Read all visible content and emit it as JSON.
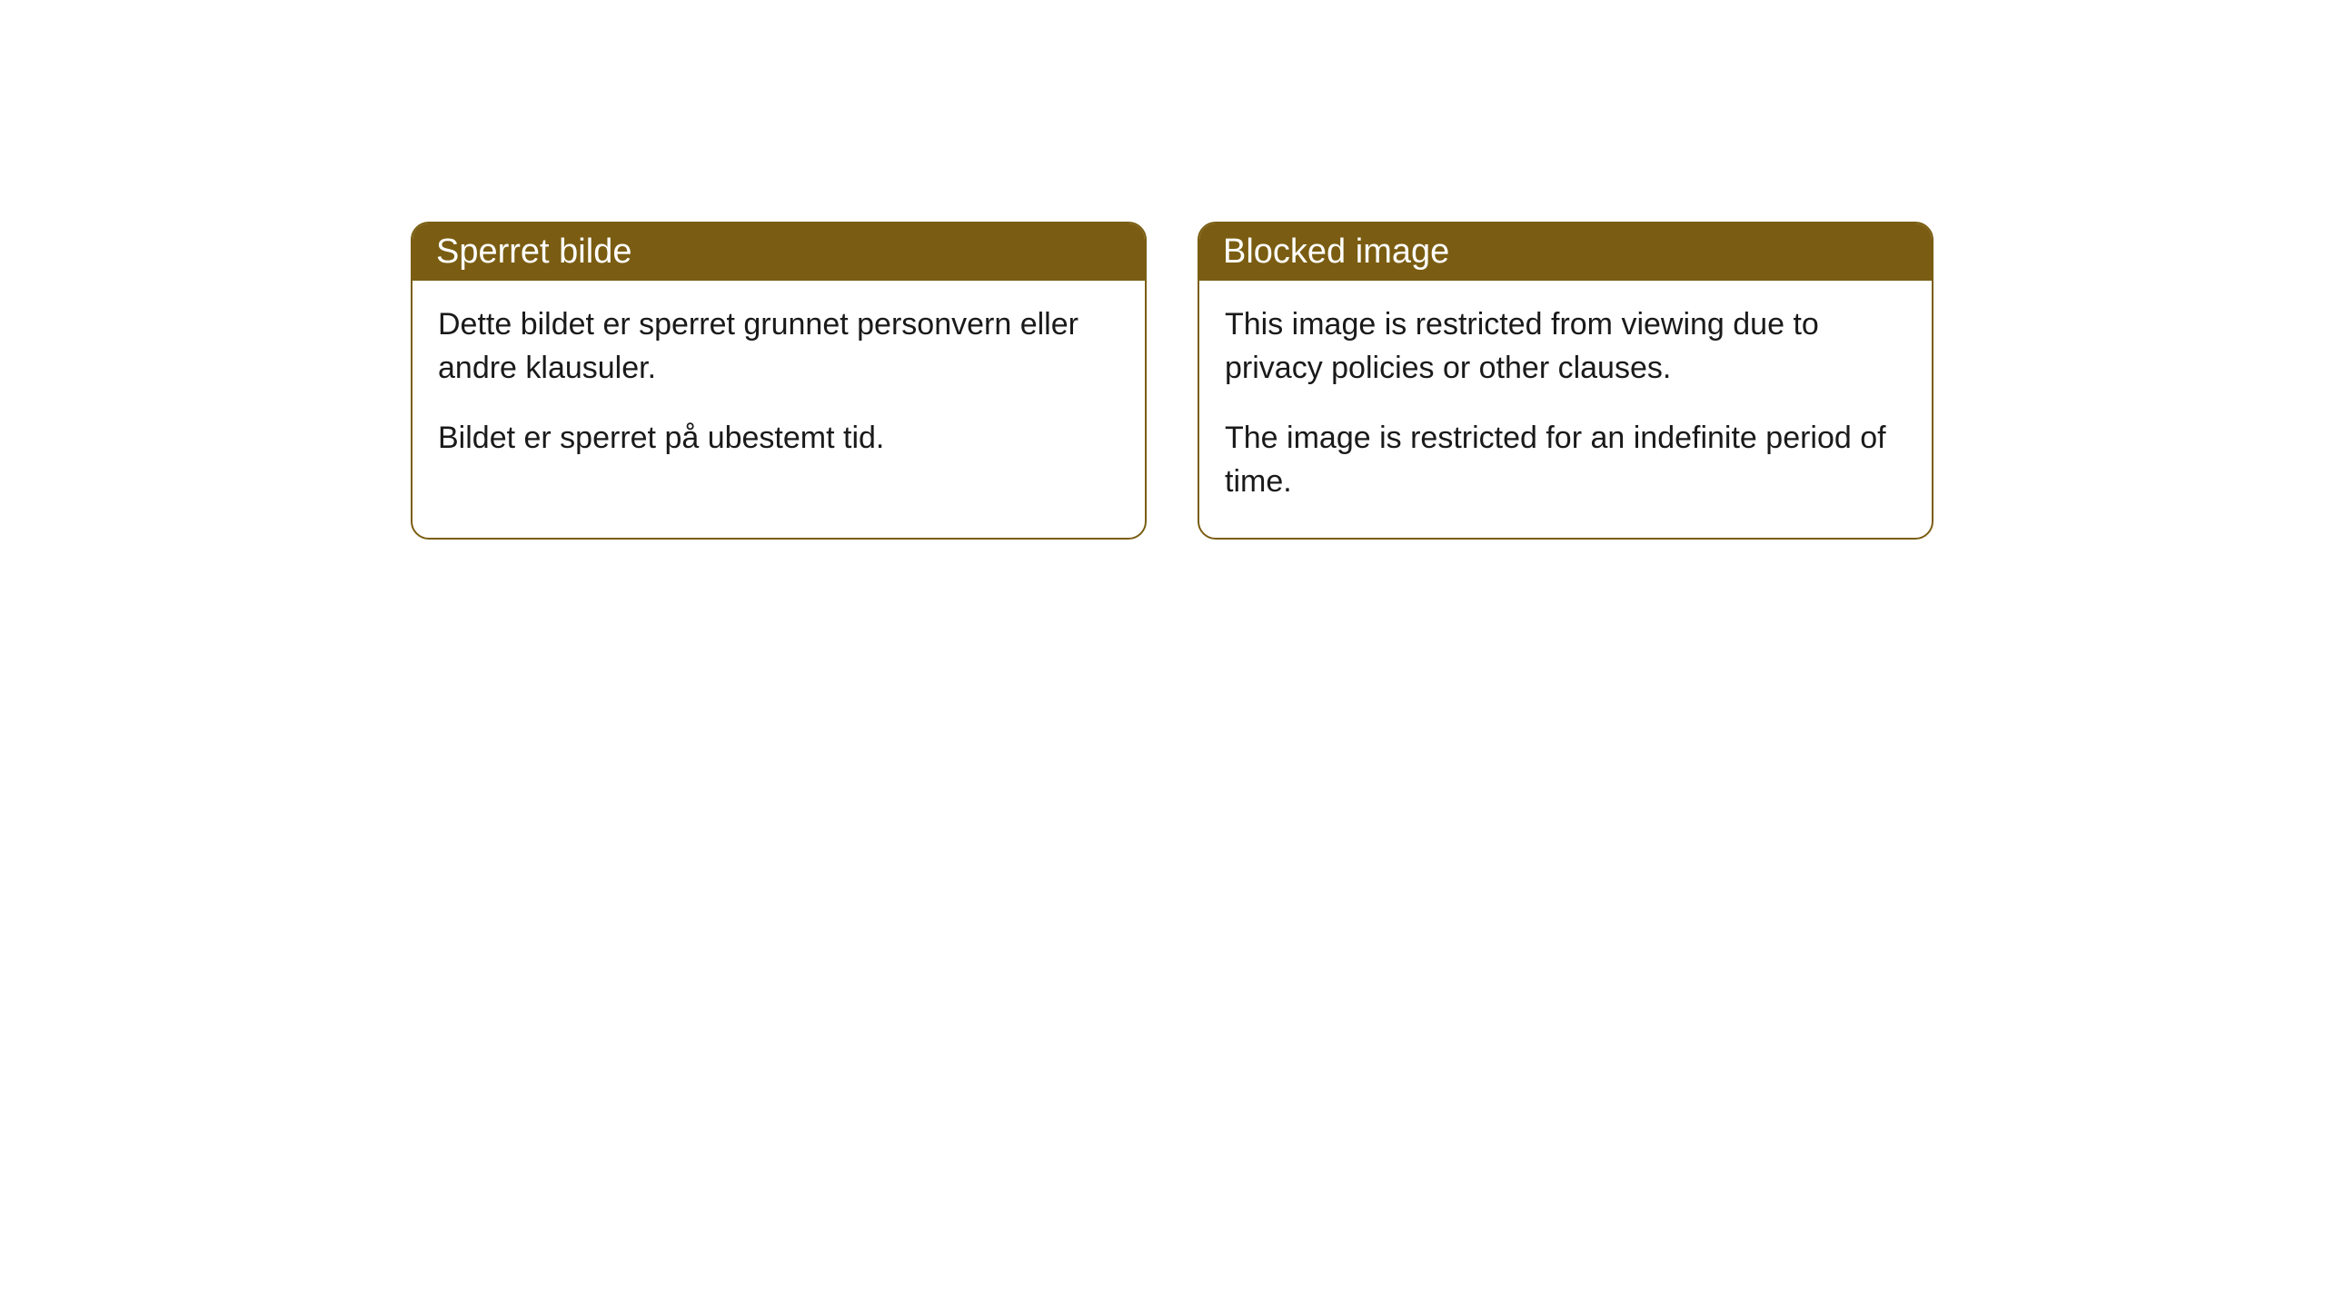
{
  "cards": [
    {
      "title": "Sperret bilde",
      "paragraph1": "Dette bildet er sperret grunnet personvern eller andre klausuler.",
      "paragraph2": "Bildet er sperret på ubestemt tid."
    },
    {
      "title": "Blocked image",
      "paragraph1": "This image is restricted from viewing due to privacy policies or other clauses.",
      "paragraph2": "The image is restricted for an indefinite period of time."
    }
  ],
  "styling": {
    "header_bg_color": "#7a5d12",
    "header_text_color": "#ffffff",
    "border_color": "#7a5d12",
    "body_bg_color": "#ffffff",
    "body_text_color": "#1a1a1a",
    "border_radius": 20,
    "header_fontsize": 38,
    "body_fontsize": 34
  }
}
